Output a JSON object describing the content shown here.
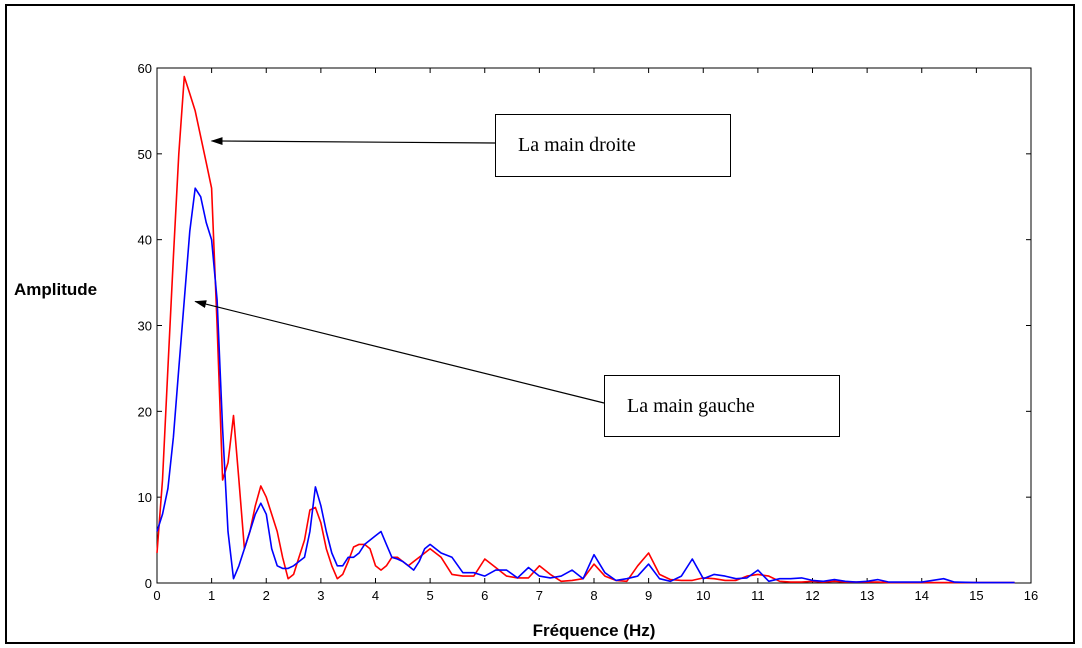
{
  "chart_data": {
    "type": "line",
    "title": "",
    "xlabel": "Fréquence (Hz)",
    "ylabel": "Amplitude",
    "xlim": [
      0,
      16
    ],
    "ylim": [
      0,
      60
    ],
    "xticks": [
      0,
      1,
      2,
      3,
      4,
      5,
      6,
      7,
      8,
      9,
      10,
      11,
      12,
      13,
      14,
      15,
      16
    ],
    "yticks": [
      0,
      10,
      20,
      30,
      40,
      50,
      60
    ],
    "grid": false,
    "series": [
      {
        "name": "La main droite",
        "color": "#ff0000",
        "x": [
          0,
          0.1,
          0.2,
          0.3,
          0.4,
          0.5,
          0.6,
          0.7,
          0.8,
          0.9,
          1.0,
          1.1,
          1.2,
          1.3,
          1.4,
          1.5,
          1.6,
          1.7,
          1.8,
          1.9,
          2.0,
          2.1,
          2.2,
          2.3,
          2.4,
          2.5,
          2.6,
          2.7,
          2.8,
          2.9,
          3.0,
          3.1,
          3.2,
          3.3,
          3.4,
          3.5,
          3.6,
          3.7,
          3.8,
          3.9,
          4.0,
          4.1,
          4.2,
          4.3,
          4.4,
          4.5,
          4.6,
          4.7,
          4.8,
          4.9,
          5.0,
          5.2,
          5.4,
          5.6,
          5.8,
          6.0,
          6.2,
          6.4,
          6.6,
          6.8,
          7.0,
          7.2,
          7.4,
          7.6,
          7.8,
          8.0,
          8.2,
          8.4,
          8.6,
          8.8,
          9.0,
          9.2,
          9.4,
          9.6,
          9.8,
          10.0,
          10.2,
          10.4,
          10.6,
          10.8,
          11.0,
          11.2,
          11.4,
          11.6,
          11.8,
          12.0,
          12.2,
          12.4,
          12.6,
          12.8,
          13.0,
          13.2,
          13.4,
          14.0,
          15.0,
          15.7
        ],
        "y": [
          3.5,
          12,
          25,
          38,
          50,
          59,
          57,
          55,
          52,
          49,
          46,
          30,
          12,
          14,
          19.5,
          12,
          4,
          6,
          9,
          11.3,
          10,
          8,
          6,
          3,
          0.5,
          1,
          3,
          5,
          8.5,
          8.8,
          7,
          4,
          2,
          0.5,
          1,
          2.5,
          4.2,
          4.5,
          4.5,
          4,
          2,
          1.5,
          2,
          3,
          3,
          2.5,
          2,
          2.5,
          3,
          3.5,
          4,
          3,
          1,
          0.8,
          0.8,
          2.8,
          1.8,
          0.8,
          0.6,
          0.6,
          2,
          1,
          0.2,
          0.3,
          0.5,
          2.2,
          0.8,
          0.3,
          0.2,
          2,
          3.5,
          1,
          0.4,
          0.3,
          0.3,
          0.6,
          0.5,
          0.3,
          0.3,
          0.8,
          1,
          0.8,
          0.2,
          0.1,
          0.1,
          0.2,
          0.1,
          0.2,
          0.1,
          0.1,
          0.1,
          0.1,
          0.05,
          0.05,
          0.05,
          0.05
        ]
      },
      {
        "name": "La main gauche",
        "color": "#0000ff",
        "x": [
          0,
          0.1,
          0.2,
          0.3,
          0.4,
          0.5,
          0.6,
          0.7,
          0.8,
          0.9,
          1.0,
          1.1,
          1.2,
          1.3,
          1.4,
          1.5,
          1.6,
          1.7,
          1.8,
          1.9,
          2.0,
          2.1,
          2.2,
          2.3,
          2.4,
          2.5,
          2.6,
          2.7,
          2.8,
          2.9,
          3.0,
          3.1,
          3.2,
          3.3,
          3.4,
          3.5,
          3.6,
          3.7,
          3.8,
          3.9,
          4.0,
          4.1,
          4.2,
          4.3,
          4.4,
          4.5,
          4.6,
          4.7,
          4.8,
          4.9,
          5.0,
          5.2,
          5.4,
          5.6,
          5.8,
          6.0,
          6.2,
          6.4,
          6.6,
          6.8,
          7.0,
          7.2,
          7.4,
          7.6,
          7.8,
          8.0,
          8.2,
          8.4,
          8.6,
          8.8,
          9.0,
          9.2,
          9.4,
          9.6,
          9.8,
          10.0,
          10.2,
          10.4,
          10.6,
          10.8,
          11.0,
          11.2,
          11.4,
          11.6,
          11.8,
          12.0,
          12.2,
          12.4,
          12.6,
          12.8,
          13.0,
          13.2,
          13.4,
          14.0,
          14.4,
          14.6,
          15.0,
          15.7
        ],
        "y": [
          6,
          8,
          11,
          17,
          25,
          33,
          41,
          46,
          45,
          42,
          40,
          33,
          18,
          6,
          0.5,
          2,
          4,
          6,
          8,
          9.3,
          8,
          4,
          2,
          1.7,
          1.7,
          2,
          2.5,
          3,
          6,
          11.2,
          9,
          6,
          3.5,
          2,
          2,
          3,
          3,
          3.5,
          4.5,
          5,
          5.5,
          6,
          4.5,
          3,
          2.8,
          2.5,
          2,
          1.5,
          2.5,
          4,
          4.5,
          3.5,
          3,
          1.2,
          1.2,
          0.8,
          1.5,
          1.5,
          0.6,
          1.8,
          0.8,
          0.6,
          0.8,
          1.5,
          0.5,
          3.3,
          1.2,
          0.3,
          0.5,
          0.8,
          2.2,
          0.5,
          0.2,
          0.8,
          2.8,
          0.5,
          1,
          0.8,
          0.5,
          0.6,
          1.5,
          0.2,
          0.5,
          0.5,
          0.6,
          0.3,
          0.2,
          0.4,
          0.2,
          0.1,
          0.2,
          0.4,
          0.1,
          0.1,
          0.5,
          0.1,
          0.05,
          0.05
        ]
      }
    ],
    "annotations": [
      {
        "text": "La main droite",
        "series": "La main droite",
        "arrow_target": [
          1.0,
          51.5
        ]
      },
      {
        "text": "La main gauche",
        "series": "La main gauche",
        "arrow_target": [
          0.7,
          32.8
        ]
      }
    ]
  }
}
